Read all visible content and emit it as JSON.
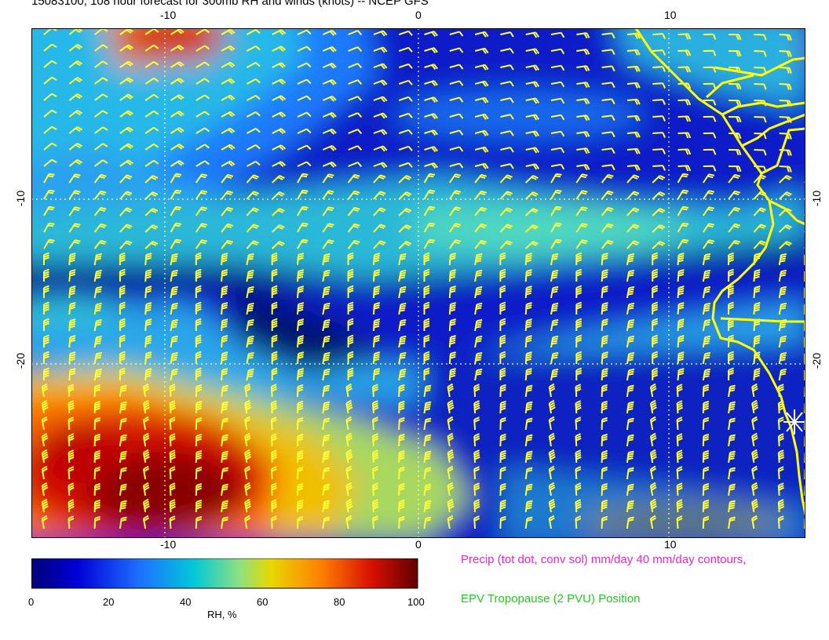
{
  "title": "15083100, 108 hour forecast for 300mb RH and winds (knots) -- NCEP GFS",
  "map": {
    "lon_ticks": [
      "-10",
      "0",
      "10"
    ],
    "lat_ticks": [
      "-10",
      "-20"
    ],
    "fill_variable": "RH, %",
    "overlay": "wind barbs (knots)",
    "coastline_color": "#ffff00",
    "barb_color": "#ffff33",
    "grid_color": "#ffff99",
    "marker": "asterisk-icon"
  },
  "colorbar": {
    "label": "RH, %",
    "ticks": [
      "0",
      "20",
      "40",
      "60",
      "80",
      "100"
    ],
    "colors": [
      "#00008b",
      "#0000e0",
      "#1e6eff",
      "#00c8d8",
      "#a0e060",
      "#e8d800",
      "#ff8000",
      "#e01000",
      "#700000"
    ]
  },
  "legend": {
    "precip": "Precip (tot dot, conv sol) mm/day 40 mm/day contours,",
    "epv": "EPV Tropopause (2 PVU) Position",
    "precip_color": "#ee22cc",
    "epv_color": "#22cc22"
  }
}
